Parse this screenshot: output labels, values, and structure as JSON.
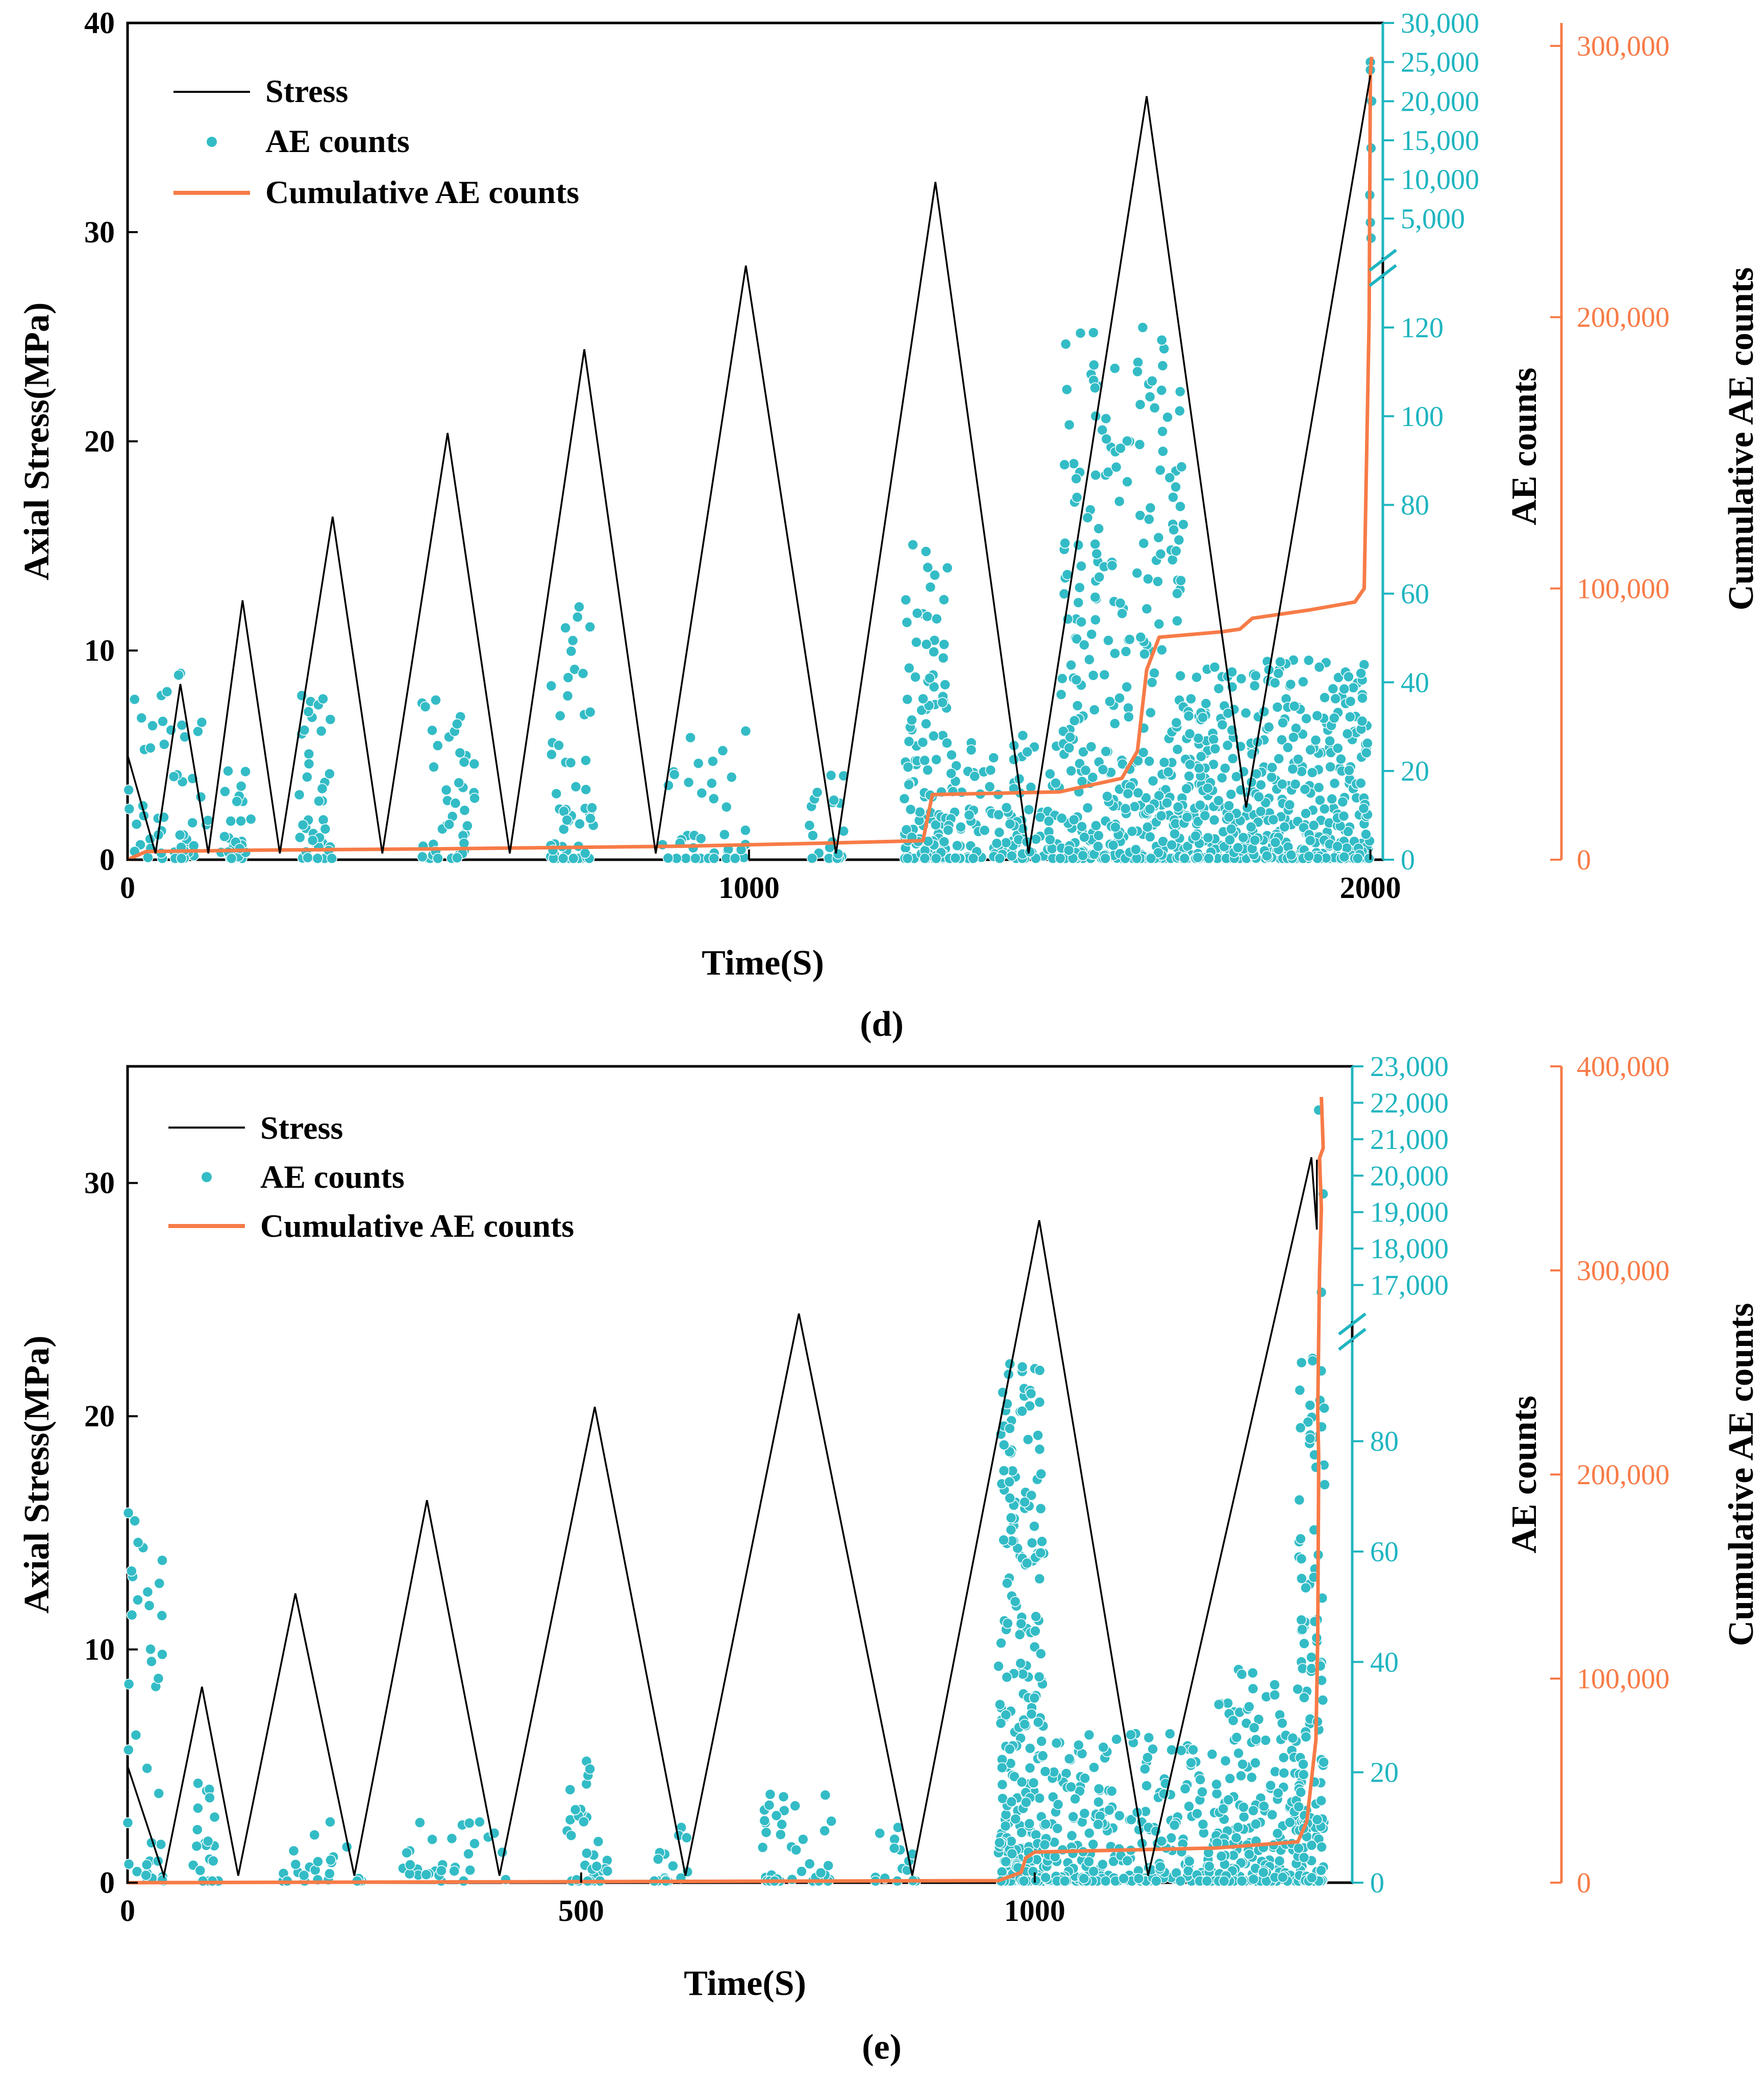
{
  "colors": {
    "stress": "#000000",
    "ae": "#33bcc6",
    "ae_axis": "#1fb5c0",
    "cumulative": "#f77b47",
    "axis": "#000000"
  },
  "chart_data": [
    {
      "type": "line+scatter",
      "panel_label": "(d)",
      "legend_position": "top-left",
      "legend": [
        "Stress",
        "AE counts",
        "Cumulative AE counts"
      ],
      "xlabel": "Time(S)",
      "ylabel": "Axial Stress(MPa)",
      "y2label": "AE counts",
      "y3label": "Cumulative AE counts",
      "xlim": [
        0,
        2020
      ],
      "ylim": [
        0,
        40
      ],
      "x_ticks": [
        "0",
        "1000",
        "2000"
      ],
      "y_ticks": [
        "0",
        "10",
        "20",
        "30",
        "40"
      ],
      "ae_axis": {
        "lower_range": [
          0,
          130
        ],
        "lower_ticks": [
          "0",
          "20",
          "40",
          "60",
          "80",
          "100",
          "120"
        ],
        "upper_range": [
          0,
          30000
        ],
        "upper_ticks": [
          "5,000",
          "10,000",
          "15,000",
          "20,000",
          "25,000",
          "30,000"
        ],
        "break": true
      },
      "cumulative_axis": {
        "range": [
          0,
          300000
        ],
        "ticks": [
          "0",
          "100,000",
          "200,000",
          "300,000"
        ]
      },
      "stress_series": {
        "name": "Stress",
        "t": [
          0,
          45,
          85,
          130,
          185,
          245,
          330,
          410,
          515,
          615,
          735,
          850,
          995,
          1140,
          1300,
          1450,
          1640,
          1800,
          2000
        ],
        "y": [
          5,
          0.3,
          8.4,
          0.3,
          12.4,
          0.3,
          16.4,
          0.3,
          20.4,
          0.3,
          24.4,
          0.3,
          28.4,
          0.3,
          32.4,
          0.3,
          36.5,
          2.5,
          37.5
        ]
      },
      "cumulative_series": {
        "name": "Cumulative AE counts",
        "t": [
          0,
          30,
          200,
          500,
          900,
          1100,
          1280,
          1295,
          1500,
          1600,
          1625,
          1640,
          1660,
          1760,
          1790,
          1810,
          1900,
          1975,
          1990,
          1998,
          2000,
          2002
        ],
        "y": [
          0,
          3000,
          3500,
          4000,
          5000,
          6000,
          7000,
          24000,
          25000,
          30000,
          40000,
          70000,
          82000,
          84000,
          85000,
          89000,
          92000,
          95000,
          100000,
          200000,
          290000,
          296000
        ]
      },
      "ae_series": {
        "name": "AE counts",
        "clusters": [
          {
            "t_range": [
              0,
              130
            ],
            "peak": 42,
            "n": 55
          },
          {
            "t_range": [
              150,
              200
            ],
            "peak": 20,
            "n": 25
          },
          {
            "t_range": [
              275,
              330
            ],
            "peak": 37,
            "n": 40
          },
          {
            "t_range": [
              470,
              560
            ],
            "peak": 36,
            "n": 45
          },
          {
            "t_range": [
              680,
              750
            ],
            "peak": 57,
            "n": 55
          },
          {
            "t_range": [
              860,
              1000
            ],
            "peak": 29,
            "n": 40
          },
          {
            "t_range": [
              1090,
              1160
            ],
            "peak": 19,
            "n": 20
          },
          {
            "t_range": [
              1250,
              1320
            ],
            "peak": 71,
            "n": 130
          },
          {
            "t_range": [
              1320,
              1500
            ],
            "peak": 28,
            "n": 120
          },
          {
            "t_range": [
              1500,
              1700
            ],
            "peak": 120,
            "n": 360
          },
          {
            "t_range": [
              1700,
              2000
            ],
            "peak": 45,
            "n": 450
          }
        ],
        "upper_points": {
          "t": [
            2000,
            2000,
            2002,
            2001,
            1999,
            2000,
            2001
          ],
          "y": [
            25000,
            24000,
            20000,
            14000,
            8000,
            4500,
            2500
          ]
        }
      }
    },
    {
      "type": "line+scatter",
      "panel_label": "(e)",
      "legend_position": "top-left",
      "legend": [
        "Stress",
        "AE counts",
        "Cumulative AE counts"
      ],
      "xlabel": "Time(S)",
      "ylabel": "Axial Stress(MPa)",
      "y2label": "AE counts",
      "y3label": "Cumulative AE counts",
      "xlim": [
        0,
        1350
      ],
      "ylim": [
        0,
        35
      ],
      "x_ticks": [
        "0",
        "500",
        "1000"
      ],
      "y_ticks": [
        "0",
        "10",
        "20",
        "30"
      ],
      "ae_axis": {
        "lower_range": [
          0,
          98
        ],
        "lower_ticks": [
          "0",
          "20",
          "40",
          "60",
          "80"
        ],
        "upper_range": [
          16000,
          23000
        ],
        "upper_ticks": [
          "17,000",
          "18,000",
          "19,000",
          "20,000",
          "21,000",
          "22,000",
          "23,000"
        ],
        "break": true
      },
      "cumulative_axis": {
        "range": [
          0,
          400000
        ],
        "ticks": [
          "0",
          "100,000",
          "200,000",
          "300,000",
          "400,000"
        ]
      },
      "stress_series": {
        "name": "Stress",
        "t": [
          0,
          40,
          82,
          122,
          185,
          250,
          330,
          410,
          515,
          615,
          740,
          865,
          1005,
          1125,
          1305,
          1311,
          1311
        ],
        "y": [
          5,
          0.3,
          8.4,
          0.3,
          12.4,
          0.3,
          16.4,
          0.3,
          20.4,
          0.3,
          24.4,
          0.3,
          28.4,
          0.3,
          31.1,
          28,
          31
        ]
      },
      "cumulative_series": {
        "name": "Cumulative AE counts",
        "t": [
          0,
          500,
          960,
          985,
          990,
          1000,
          1100,
          1200,
          1290,
          1300,
          1310,
          1312,
          1313,
          1313,
          1312,
          1314,
          1316,
          1314,
          1318,
          1316
        ],
        "y": [
          0,
          500,
          1000,
          5000,
          12000,
          15000,
          16000,
          17000,
          20000,
          30000,
          70000,
          120000,
          200000,
          210000,
          230000,
          300000,
          330000,
          355000,
          360000,
          385000
        ]
      },
      "ae_series": {
        "name": "AE counts",
        "clusters": [
          {
            "t_range": [
              0,
              40
            ],
            "peak": 67,
            "n": 40
          },
          {
            "t_range": [
              70,
              100
            ],
            "peak": 18,
            "n": 20
          },
          {
            "t_range": [
              170,
              260
            ],
            "peak": 11,
            "n": 25
          },
          {
            "t_range": [
              300,
              420
            ],
            "peak": 11,
            "n": 30
          },
          {
            "t_range": [
              480,
              530
            ],
            "peak": 22,
            "n": 35
          },
          {
            "t_range": [
              570,
              620
            ],
            "peak": 10,
            "n": 15
          },
          {
            "t_range": [
              700,
              780
            ],
            "peak": 16,
            "n": 40
          },
          {
            "t_range": [
              820,
              870
            ],
            "peak": 10,
            "n": 15
          },
          {
            "t_range": [
              960,
              1010
            ],
            "peak": 94,
            "n": 260
          },
          {
            "t_range": [
              1010,
              1200
            ],
            "peak": 27,
            "n": 260
          },
          {
            "t_range": [
              1200,
              1300
            ],
            "peak": 40,
            "n": 200
          },
          {
            "t_range": [
              1290,
              1320
            ],
            "peak": 95,
            "n": 120
          }
        ],
        "upper_points": {
          "t": [
            1313,
            1318,
            1316
          ],
          "y": [
            21800,
            19500,
            16800
          ]
        }
      }
    }
  ]
}
